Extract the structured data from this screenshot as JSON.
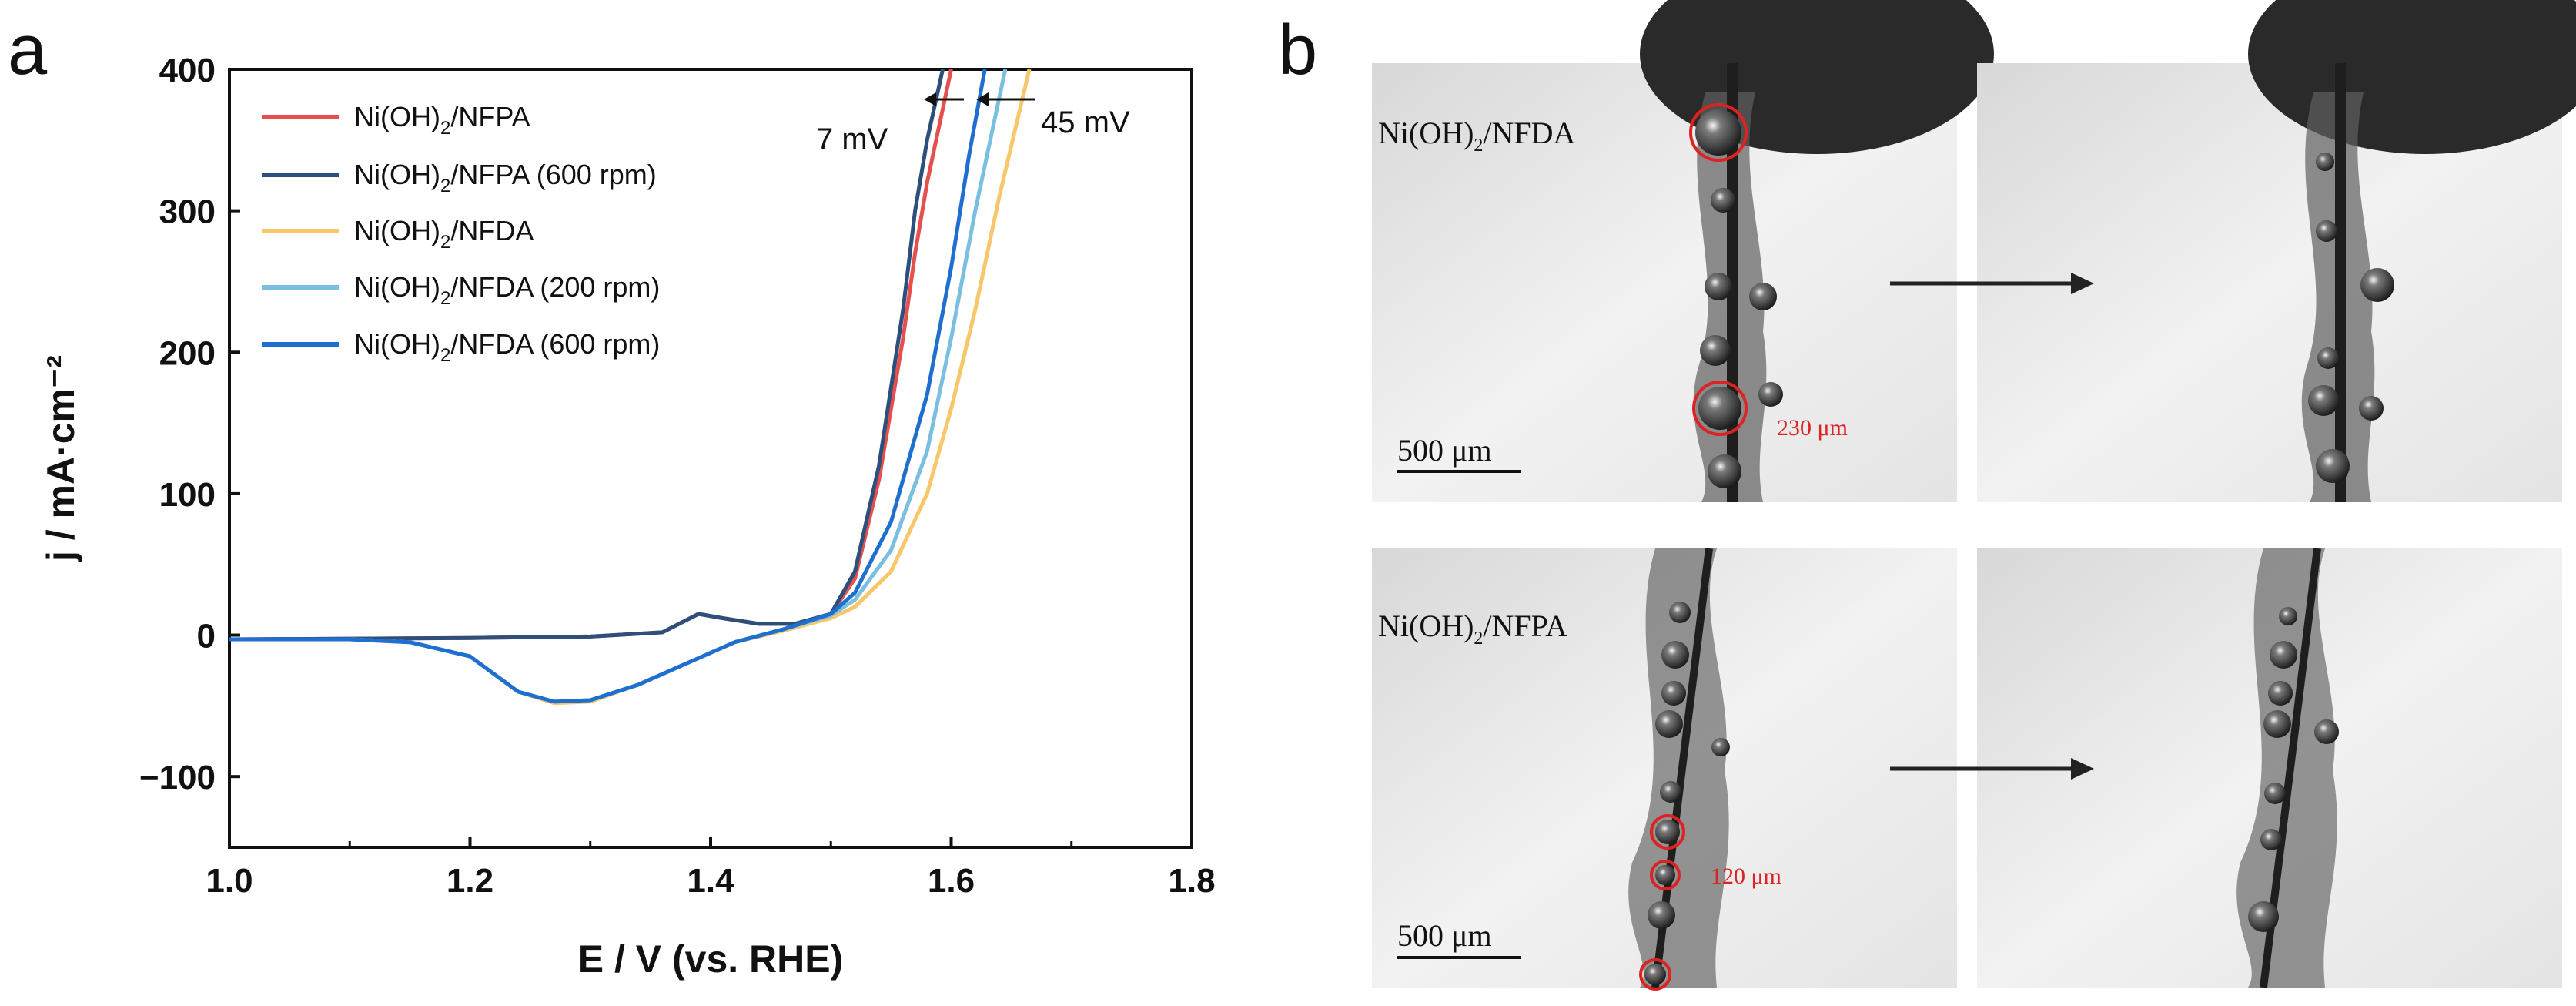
{
  "panels": {
    "a": "a",
    "b": "b"
  },
  "chart_data": {
    "type": "line",
    "title": "",
    "xlabel": "E / V (vs. RHE)",
    "ylabel": "j / mA·cm⁻²",
    "xlim": [
      1.0,
      1.8
    ],
    "ylim": [
      -150,
      400
    ],
    "xticks": [
      1.0,
      1.2,
      1.4,
      1.6,
      1.8
    ],
    "xtick_labels": [
      "1.0",
      "1.2",
      "1.4",
      "1.6",
      "1.8"
    ],
    "yticks": [
      -100,
      0,
      100,
      200,
      300,
      400
    ],
    "ytick_labels": [
      "−100",
      "0",
      "100",
      "200",
      "300",
      "400"
    ],
    "grid": false,
    "legend_position": "top-left",
    "series": [
      {
        "name": "Ni(OH)2/NFPA",
        "label_main": "Ni(OH)",
        "label_sub": "2",
        "label_rest": "/NFPA",
        "color": "#e5504f",
        "x": [
          1.0,
          1.2,
          1.3,
          1.36,
          1.39,
          1.41,
          1.44,
          1.47,
          1.5,
          1.52,
          1.54,
          1.56,
          1.57,
          1.58,
          1.59,
          1.6
        ],
        "y": [
          -3,
          -2,
          -1,
          2,
          15,
          12,
          8,
          8,
          15,
          40,
          110,
          210,
          270,
          320,
          360,
          400
        ]
      },
      {
        "name": "Ni(OH)2/NFPA (600 rpm)",
        "label_main": "Ni(OH)",
        "label_sub": "2",
        "label_rest": "/NFPA (600 rpm)",
        "color": "#2c4f7c",
        "x": [
          1.0,
          1.2,
          1.3,
          1.36,
          1.39,
          1.41,
          1.44,
          1.47,
          1.5,
          1.52,
          1.54,
          1.56,
          1.57,
          1.58,
          1.593
        ],
        "y": [
          -3,
          -2,
          -1,
          2,
          15,
          12,
          8,
          8,
          15,
          45,
          120,
          230,
          300,
          350,
          400
        ]
      },
      {
        "name": "Ni(OH)2/NFDA",
        "label_main": "Ni(OH)",
        "label_sub": "2",
        "label_rest": "/NFDA",
        "color": "#f7c76a",
        "x": [
          1.0,
          1.1,
          1.15,
          1.2,
          1.24,
          1.27,
          1.3,
          1.34,
          1.38,
          1.42,
          1.46,
          1.5,
          1.52,
          1.55,
          1.58,
          1.6,
          1.62,
          1.64,
          1.665
        ],
        "y": [
          -3,
          -3,
          -5,
          -15,
          -40,
          -48,
          -47,
          -35,
          -20,
          -5,
          3,
          12,
          20,
          45,
          100,
          160,
          230,
          310,
          400
        ]
      },
      {
        "name": "Ni(OH)2/NFDA (200 rpm)",
        "label_main": "Ni(OH)",
        "label_sub": "2",
        "label_rest": "/NFDA (200 rpm)",
        "color": "#79c0e0",
        "x": [
          1.0,
          1.1,
          1.15,
          1.2,
          1.24,
          1.27,
          1.3,
          1.34,
          1.38,
          1.42,
          1.46,
          1.5,
          1.52,
          1.55,
          1.58,
          1.6,
          1.62,
          1.645
        ],
        "y": [
          -3,
          -3,
          -5,
          -15,
          -40,
          -47,
          -46,
          -35,
          -20,
          -5,
          4,
          14,
          25,
          60,
          130,
          210,
          300,
          400
        ]
      },
      {
        "name": "Ni(OH)2/NFDA (600 rpm)",
        "label_main": "Ni(OH)",
        "label_sub": "2",
        "label_rest": "/NFDA (600 rpm)",
        "color": "#1f6fd1",
        "x": [
          1.0,
          1.1,
          1.15,
          1.2,
          1.24,
          1.27,
          1.3,
          1.34,
          1.38,
          1.42,
          1.46,
          1.5,
          1.52,
          1.55,
          1.58,
          1.6,
          1.615,
          1.628
        ],
        "y": [
          -3,
          -3,
          -5,
          -15,
          -40,
          -47,
          -46,
          -35,
          -20,
          -5,
          4,
          15,
          30,
          80,
          170,
          260,
          340,
          400
        ]
      }
    ],
    "annotations": [
      {
        "text": "7 mV",
        "x": 1.585,
        "y": 375
      },
      {
        "text": "45 mV",
        "x": 1.66,
        "y": 375
      }
    ]
  },
  "photos": {
    "top_label_main": "Ni(OH)",
    "top_label_sub": "2",
    "top_label_rest": "/NFDA",
    "bottom_label_main": "Ni(OH)",
    "bottom_label_sub": "2",
    "bottom_label_rest": "/NFPA",
    "scale_bar_top": "500 μm",
    "scale_bar_bottom": "500 μm",
    "bubble_size_top": "230 μm",
    "bubble_size_bottom": "120 μm"
  }
}
